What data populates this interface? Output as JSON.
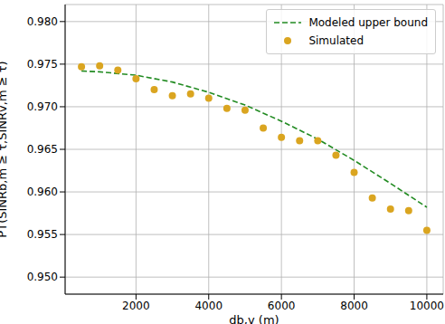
{
  "chart_data": {
    "type": "scatter",
    "xlabel": "db,v (m)",
    "ylabel": "PT(SINRb,m ≥ τ,SINRv,m ≥ τ)",
    "xlim": [
      50,
      10450
    ],
    "ylim": [
      0.948,
      0.982
    ],
    "xticks": [
      2000,
      4000,
      6000,
      8000,
      10000
    ],
    "yticks": [
      {
        "value": 0.95,
        "label": "0.950"
      },
      {
        "value": 0.955,
        "label": "0.955"
      },
      {
        "value": 0.96,
        "label": "0.960"
      },
      {
        "value": 0.965,
        "label": "0.965"
      },
      {
        "value": 0.97,
        "label": "0.970"
      },
      {
        "value": 0.975,
        "label": "0.975"
      },
      {
        "value": 0.98,
        "label": "0.980"
      }
    ],
    "grid": true,
    "legend": "upper right",
    "series": [
      {
        "name": "Modeled upper bound",
        "type": "line",
        "line_style": "dashed",
        "color": "#228b22",
        "x": [
          500,
          1000,
          2000,
          3000,
          4000,
          5000,
          6000,
          7000,
          8000,
          9000,
          10000
        ],
        "values": [
          0.9742,
          0.9741,
          0.9737,
          0.9729,
          0.9717,
          0.9702,
          0.9683,
          0.9662,
          0.9637,
          0.961,
          0.9582
        ]
      },
      {
        "name": "Simulated",
        "type": "scatter",
        "marker": "circle",
        "color": "#daa520",
        "x": [
          500,
          1000,
          1500,
          2000,
          2500,
          3000,
          3500,
          4000,
          4500,
          5000,
          5500,
          6000,
          6500,
          7000,
          7500,
          8000,
          8500,
          9000,
          9500,
          10000
        ],
        "values": [
          0.9747,
          0.9748,
          0.9743,
          0.9733,
          0.972,
          0.9713,
          0.9715,
          0.971,
          0.9698,
          0.9696,
          0.9675,
          0.9664,
          0.966,
          0.966,
          0.9643,
          0.9623,
          0.9593,
          0.958,
          0.9578,
          0.9555
        ]
      }
    ]
  }
}
